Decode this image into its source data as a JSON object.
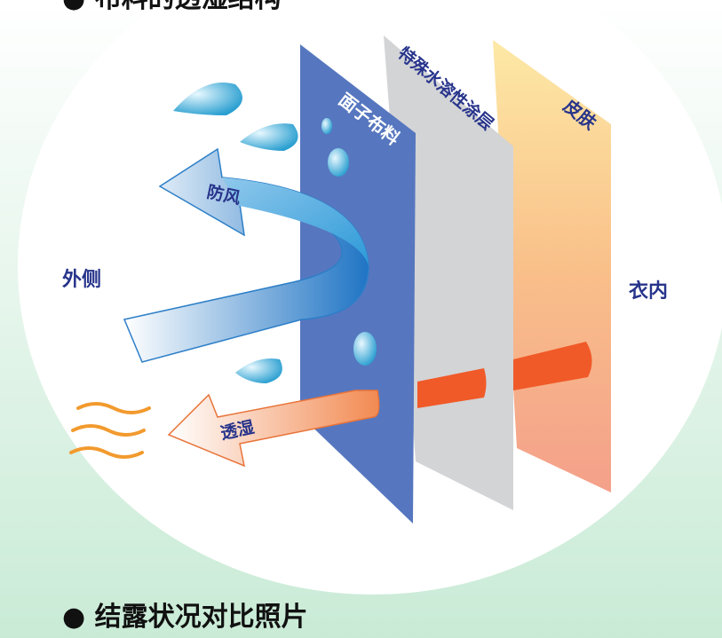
{
  "header": {
    "title": "● 布料的透湿结构"
  },
  "layers": {
    "outer_fabric": "面子布料",
    "coating": "特殊水溶性涂层",
    "skin": "皮肤"
  },
  "arrows": {
    "windproof": "防风",
    "moisture": "透湿"
  },
  "sides": {
    "outside": "外侧",
    "inside": "衣内"
  },
  "footer": {
    "title": "● 结露状况对比照片"
  }
}
